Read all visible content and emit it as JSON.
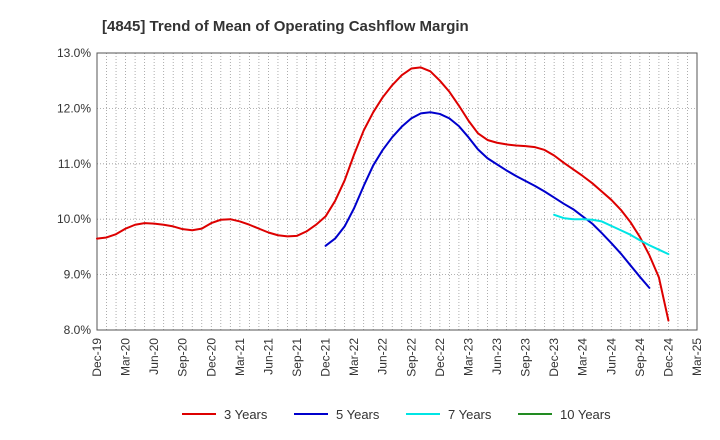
{
  "chart_data": {
    "type": "line",
    "title": "[4845]  Trend of Mean of Operating Cashflow Margin",
    "xlabel": "",
    "ylabel": "",
    "ylim": [
      8.0,
      13.0
    ],
    "ytick_values": [
      8.0,
      9.0,
      10.0,
      11.0,
      12.0,
      13.0
    ],
    "ytick_labels": [
      "8.0%",
      "9.0%",
      "10.0%",
      "11.0%",
      "12.0%",
      "13.0%"
    ],
    "x_start": "Dec-19",
    "x_tick_labels": [
      "Dec-19",
      "Mar-20",
      "Jun-20",
      "Sep-20",
      "Dec-20",
      "Mar-21",
      "Jun-21",
      "Sep-21",
      "Dec-21",
      "Mar-22",
      "Jun-22",
      "Sep-22",
      "Dec-22",
      "Mar-23",
      "Jun-23",
      "Sep-23",
      "Dec-23",
      "Mar-24",
      "Jun-24",
      "Sep-24",
      "Dec-24",
      "Mar-25"
    ],
    "x_tick_month_index": [
      0,
      3,
      6,
      9,
      12,
      15,
      18,
      21,
      24,
      27,
      30,
      33,
      36,
      39,
      42,
      45,
      48,
      51,
      54,
      57,
      60,
      63
    ],
    "grid": true,
    "legend_position": "bottom",
    "series": [
      {
        "name": "3 Years",
        "color": "#dd0000",
        "start_index": 0,
        "values": [
          9.65,
          9.67,
          9.73,
          9.83,
          9.9,
          9.93,
          9.92,
          9.9,
          9.87,
          9.82,
          9.8,
          9.83,
          9.93,
          9.99,
          10.0,
          9.96,
          9.9,
          9.83,
          9.76,
          9.71,
          9.69,
          9.7,
          9.78,
          9.9,
          10.05,
          10.33,
          10.7,
          11.17,
          11.6,
          11.93,
          12.2,
          12.42,
          12.6,
          12.72,
          12.74,
          12.67,
          12.5,
          12.3,
          12.05,
          11.78,
          11.55,
          11.43,
          11.38,
          11.35,
          11.33,
          11.32,
          11.3,
          11.25,
          11.15,
          11.02,
          10.9,
          10.78,
          10.65,
          10.5,
          10.35,
          10.17,
          9.95,
          9.68,
          9.35,
          8.95,
          8.17
        ]
      },
      {
        "name": "5 Years",
        "color": "#0000cc",
        "start_index": 24,
        "values": [
          9.52,
          9.65,
          9.87,
          10.2,
          10.6,
          10.97,
          11.25,
          11.48,
          11.67,
          11.82,
          11.91,
          11.93,
          11.9,
          11.82,
          11.68,
          11.48,
          11.26,
          11.1,
          10.99,
          10.88,
          10.78,
          10.69,
          10.6,
          10.5,
          10.39,
          10.28,
          10.18,
          10.05,
          9.92,
          9.75,
          9.57,
          9.38,
          9.17,
          8.96,
          8.76
        ]
      },
      {
        "name": "7 Years",
        "color": "#00e5e5",
        "start_index": 48,
        "values": [
          10.08,
          10.02,
          10.0,
          10.0,
          9.99,
          9.96,
          9.88,
          9.8,
          9.72,
          9.62,
          9.53,
          9.45,
          9.37
        ]
      },
      {
        "name": "10 Years",
        "color": "#228b22",
        "start_index": 0,
        "values": []
      }
    ]
  }
}
